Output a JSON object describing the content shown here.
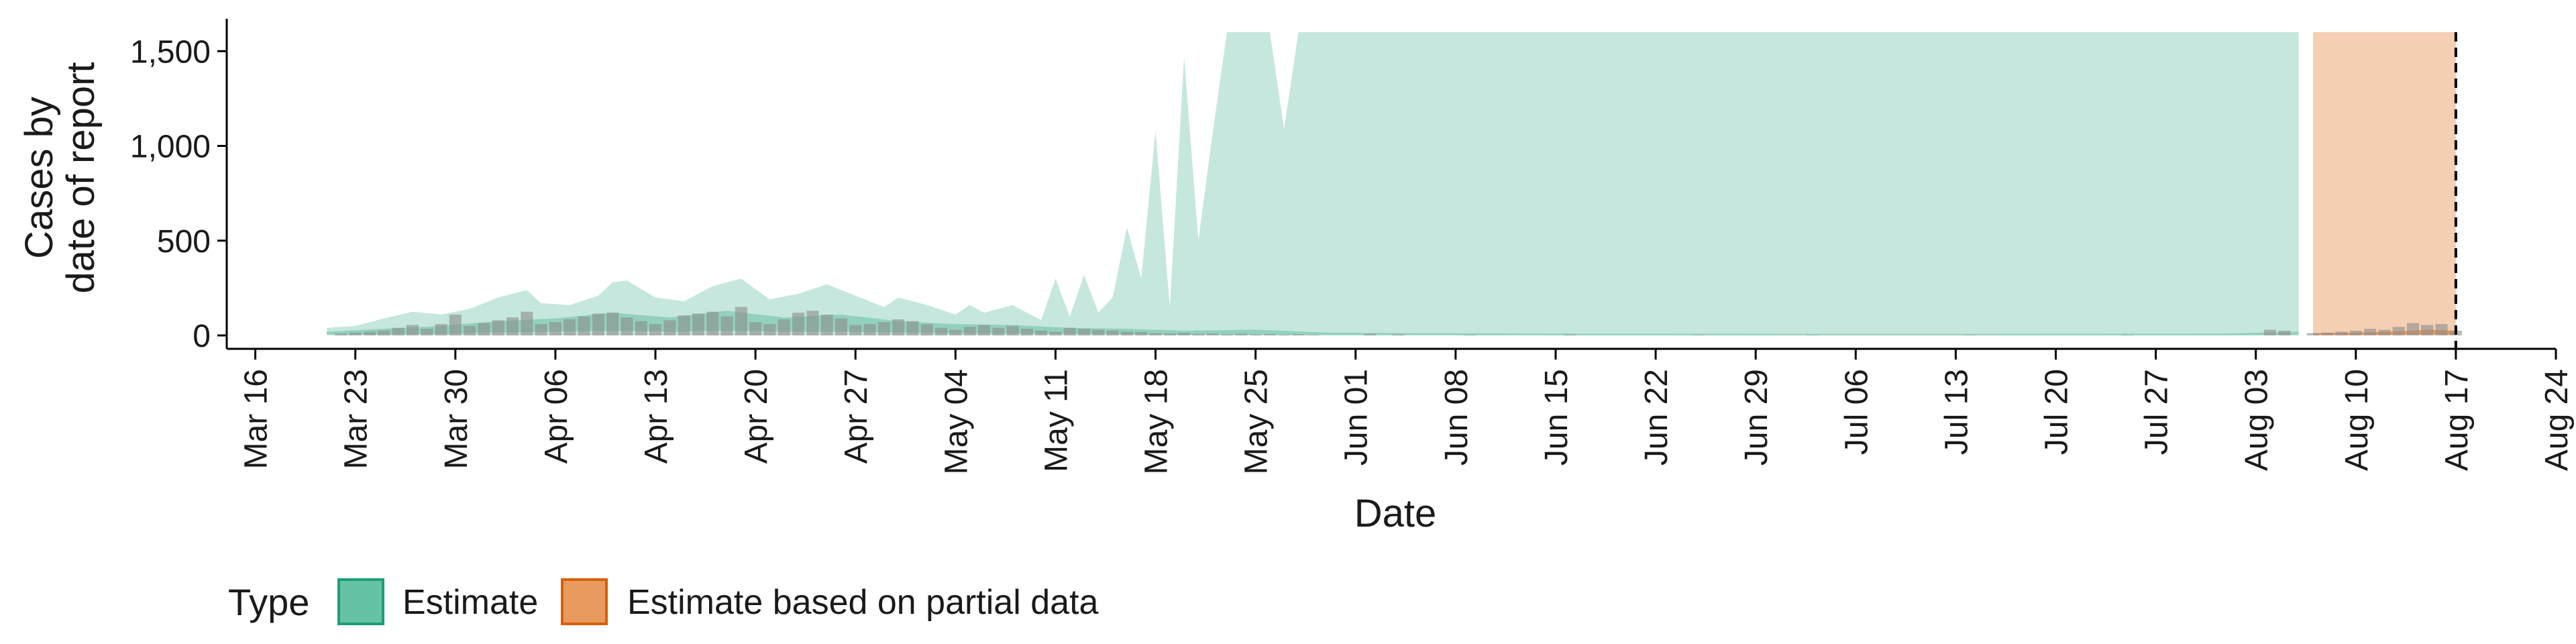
{
  "chart_data": {
    "type": "area",
    "title": "",
    "xlabel": "Date",
    "ylabel_lines": [
      "Cases by",
      "date of report"
    ],
    "ylim": [
      0,
      1600
    ],
    "xlim": [
      "2020-03-14",
      "2020-08-24"
    ],
    "y_ticks": [
      {
        "value": 0,
        "label": "0"
      },
      {
        "value": 500,
        "label": "500"
      },
      {
        "value": 1000,
        "label": "1,000"
      },
      {
        "value": 1500,
        "label": "1,500"
      }
    ],
    "x_ticks": [
      {
        "date": "2020-03-16",
        "label": "Mar 16"
      },
      {
        "date": "2020-03-23",
        "label": "Mar 23"
      },
      {
        "date": "2020-03-30",
        "label": "Mar 30"
      },
      {
        "date": "2020-04-06",
        "label": "Apr 06"
      },
      {
        "date": "2020-04-13",
        "label": "Apr 13"
      },
      {
        "date": "2020-04-20",
        "label": "Apr 20"
      },
      {
        "date": "2020-04-27",
        "label": "Apr 27"
      },
      {
        "date": "2020-05-04",
        "label": "May 04"
      },
      {
        "date": "2020-05-11",
        "label": "May 11"
      },
      {
        "date": "2020-05-18",
        "label": "May 18"
      },
      {
        "date": "2020-05-25",
        "label": "May 25"
      },
      {
        "date": "2020-06-01",
        "label": "Jun 01"
      },
      {
        "date": "2020-06-08",
        "label": "Jun 08"
      },
      {
        "date": "2020-06-15",
        "label": "Jun 15"
      },
      {
        "date": "2020-06-22",
        "label": "Jun 22"
      },
      {
        "date": "2020-06-29",
        "label": "Jun 29"
      },
      {
        "date": "2020-07-06",
        "label": "Jul 06"
      },
      {
        "date": "2020-07-13",
        "label": "Jul 13"
      },
      {
        "date": "2020-07-20",
        "label": "Jul 20"
      },
      {
        "date": "2020-07-27",
        "label": "Jul 27"
      },
      {
        "date": "2020-08-03",
        "label": "Aug 03"
      },
      {
        "date": "2020-08-10",
        "label": "Aug 10"
      },
      {
        "date": "2020-08-17",
        "label": "Aug 17"
      },
      {
        "date": "2020-08-24",
        "label": "Aug 24"
      }
    ],
    "vline_date": "2020-08-17",
    "legend": {
      "title": "Type",
      "position": "bottom",
      "entries": [
        {
          "label": "Estimate",
          "fill": "#66c2a5",
          "stroke": "#1b9e77"
        },
        {
          "label": "Estimate based on partial data",
          "fill": "#e89a5e",
          "stroke": "#d95f02"
        }
      ]
    },
    "colors": {
      "estimate": "#1b9e77",
      "partial": "#d95f02",
      "bar": "#8c8c8c",
      "vline": "#000000"
    },
    "series": [
      {
        "type": "Estimate",
        "band": "outer",
        "opacity": 0.25,
        "points": [
          [
            "2020-03-21",
            40,
            0
          ],
          [
            "2020-03-23",
            50,
            0
          ],
          [
            "2020-03-25",
            90,
            0
          ],
          [
            "2020-03-27",
            125,
            0
          ],
          [
            "2020-03-29",
            110,
            0
          ],
          [
            "2020-03-31",
            140,
            0
          ],
          [
            "2020-04-02",
            200,
            0
          ],
          [
            "2020-04-04",
            240,
            0
          ],
          [
            "2020-04-05",
            170,
            0
          ],
          [
            "2020-04-07",
            160,
            0
          ],
          [
            "2020-04-09",
            210,
            0
          ],
          [
            "2020-04-10",
            280,
            0
          ],
          [
            "2020-04-11",
            290,
            0
          ],
          [
            "2020-04-13",
            200,
            0
          ],
          [
            "2020-04-15",
            180,
            0
          ],
          [
            "2020-04-17",
            260,
            0
          ],
          [
            "2020-04-19",
            300,
            0
          ],
          [
            "2020-04-21",
            190,
            0
          ],
          [
            "2020-04-23",
            220,
            0
          ],
          [
            "2020-04-25",
            270,
            0
          ],
          [
            "2020-04-27",
            210,
            0
          ],
          [
            "2020-04-29",
            150,
            0
          ],
          [
            "2020-04-30",
            200,
            0
          ],
          [
            "2020-05-02",
            160,
            0
          ],
          [
            "2020-05-04",
            110,
            0
          ],
          [
            "2020-05-05",
            160,
            0
          ],
          [
            "2020-05-06",
            120,
            0
          ],
          [
            "2020-05-08",
            160,
            0
          ],
          [
            "2020-05-09",
            120,
            0
          ],
          [
            "2020-05-10",
            80,
            0
          ],
          [
            "2020-05-11",
            300,
            0
          ],
          [
            "2020-05-12",
            100,
            0
          ],
          [
            "2020-05-13",
            320,
            0
          ],
          [
            "2020-05-14",
            120,
            0
          ],
          [
            "2020-05-15",
            200,
            0
          ],
          [
            "2020-05-16",
            570,
            0
          ],
          [
            "2020-05-17",
            300,
            0
          ],
          [
            "2020-05-18",
            1080,
            0
          ],
          [
            "2020-05-19",
            150,
            0
          ],
          [
            "2020-05-20",
            1470,
            0
          ],
          [
            "2020-05-21",
            500,
            0
          ],
          [
            "2020-05-22",
            1070,
            0
          ],
          [
            "2020-05-23",
            1600,
            0
          ],
          [
            "2020-05-26",
            1600,
            0
          ],
          [
            "2020-05-27",
            1090,
            0
          ],
          [
            "2020-05-28",
            1600,
            0
          ],
          [
            "2020-08-06",
            1600,
            0
          ]
        ]
      },
      {
        "type": "Estimate",
        "band": "inner",
        "opacity": 0.3,
        "points": [
          [
            "2020-03-21",
            20,
            5
          ],
          [
            "2020-03-25",
            35,
            5
          ],
          [
            "2020-03-29",
            50,
            8
          ],
          [
            "2020-04-02",
            75,
            15
          ],
          [
            "2020-04-06",
            90,
            20
          ],
          [
            "2020-04-10",
            120,
            25
          ],
          [
            "2020-04-14",
            95,
            20
          ],
          [
            "2020-04-18",
            130,
            25
          ],
          [
            "2020-04-22",
            95,
            20
          ],
          [
            "2020-04-26",
            110,
            20
          ],
          [
            "2020-04-30",
            75,
            15
          ],
          [
            "2020-05-04",
            60,
            10
          ],
          [
            "2020-05-08",
            55,
            10
          ],
          [
            "2020-05-12",
            40,
            8
          ],
          [
            "2020-05-16",
            35,
            5
          ],
          [
            "2020-05-20",
            25,
            4
          ],
          [
            "2020-05-25",
            30,
            4
          ],
          [
            "2020-05-30",
            15,
            2
          ],
          [
            "2020-06-05",
            12,
            2
          ],
          [
            "2020-06-15",
            10,
            1
          ],
          [
            "2020-07-01",
            8,
            1
          ],
          [
            "2020-07-15",
            8,
            1
          ],
          [
            "2020-08-01",
            10,
            1
          ],
          [
            "2020-08-06",
            20,
            3
          ]
        ]
      },
      {
        "type": "Estimate based on partial data",
        "band": "outer",
        "opacity": 0.3,
        "points": [
          [
            "2020-08-07",
            1600,
            0
          ],
          [
            "2020-08-17",
            1600,
            0
          ]
        ]
      },
      {
        "type": "Estimate based on partial data",
        "band": "inner",
        "opacity": 0.5,
        "points": [
          [
            "2020-08-07",
            12,
            2
          ],
          [
            "2020-08-10",
            15,
            2
          ],
          [
            "2020-08-13",
            22,
            4
          ],
          [
            "2020-08-15",
            30,
            5
          ],
          [
            "2020-08-17",
            25,
            4
          ]
        ]
      }
    ],
    "reported_cases": [
      [
        "2020-03-22",
        10
      ],
      [
        "2020-03-23",
        15
      ],
      [
        "2020-03-24",
        20
      ],
      [
        "2020-03-25",
        25
      ],
      [
        "2020-03-26",
        40
      ],
      [
        "2020-03-27",
        55
      ],
      [
        "2020-03-28",
        35
      ],
      [
        "2020-03-29",
        60
      ],
      [
        "2020-03-30",
        110
      ],
      [
        "2020-03-31",
        50
      ],
      [
        "2020-04-01",
        65
      ],
      [
        "2020-04-02",
        80
      ],
      [
        "2020-04-03",
        95
      ],
      [
        "2020-04-04",
        125
      ],
      [
        "2020-04-05",
        60
      ],
      [
        "2020-04-06",
        70
      ],
      [
        "2020-04-07",
        85
      ],
      [
        "2020-04-08",
        100
      ],
      [
        "2020-04-09",
        115
      ],
      [
        "2020-04-10",
        120
      ],
      [
        "2020-04-11",
        95
      ],
      [
        "2020-04-12",
        75
      ],
      [
        "2020-04-13",
        60
      ],
      [
        "2020-04-14",
        80
      ],
      [
        "2020-04-15",
        105
      ],
      [
        "2020-04-16",
        115
      ],
      [
        "2020-04-17",
        125
      ],
      [
        "2020-04-18",
        100
      ],
      [
        "2020-04-19",
        150
      ],
      [
        "2020-04-20",
        70
      ],
      [
        "2020-04-21",
        60
      ],
      [
        "2020-04-22",
        85
      ],
      [
        "2020-04-23",
        120
      ],
      [
        "2020-04-24",
        130
      ],
      [
        "2020-04-25",
        110
      ],
      [
        "2020-04-26",
        90
      ],
      [
        "2020-04-27",
        55
      ],
      [
        "2020-04-28",
        60
      ],
      [
        "2020-04-29",
        70
      ],
      [
        "2020-04-30",
        85
      ],
      [
        "2020-05-01",
        75
      ],
      [
        "2020-05-02",
        60
      ],
      [
        "2020-05-03",
        40
      ],
      [
        "2020-05-04",
        30
      ],
      [
        "2020-05-05",
        45
      ],
      [
        "2020-05-06",
        55
      ],
      [
        "2020-05-07",
        40
      ],
      [
        "2020-05-08",
        50
      ],
      [
        "2020-05-09",
        35
      ],
      [
        "2020-05-10",
        25
      ],
      [
        "2020-05-11",
        20
      ],
      [
        "2020-05-12",
        40
      ],
      [
        "2020-05-13",
        35
      ],
      [
        "2020-05-14",
        30
      ],
      [
        "2020-05-15",
        25
      ],
      [
        "2020-05-16",
        20
      ],
      [
        "2020-05-17",
        18
      ],
      [
        "2020-05-18",
        12
      ],
      [
        "2020-05-19",
        10
      ],
      [
        "2020-05-20",
        14
      ],
      [
        "2020-05-21",
        8
      ],
      [
        "2020-05-22",
        10
      ],
      [
        "2020-05-23",
        6
      ],
      [
        "2020-05-24",
        8
      ],
      [
        "2020-05-25",
        5
      ],
      [
        "2020-05-26",
        7
      ],
      [
        "2020-05-27",
        4
      ],
      [
        "2020-05-28",
        6
      ],
      [
        "2020-05-29",
        3
      ],
      [
        "2020-06-02",
        8
      ],
      [
        "2020-06-04",
        5
      ],
      [
        "2020-06-09",
        3
      ],
      [
        "2020-06-16",
        4
      ],
      [
        "2020-06-25",
        2
      ],
      [
        "2020-07-03",
        3
      ],
      [
        "2020-07-14",
        2
      ],
      [
        "2020-07-25",
        3
      ],
      [
        "2020-08-04",
        30
      ],
      [
        "2020-08-05",
        25
      ],
      [
        "2020-08-07",
        12
      ],
      [
        "2020-08-08",
        15
      ],
      [
        "2020-08-09",
        20
      ],
      [
        "2020-08-10",
        25
      ],
      [
        "2020-08-11",
        35
      ],
      [
        "2020-08-12",
        30
      ],
      [
        "2020-08-13",
        45
      ],
      [
        "2020-08-14",
        65
      ],
      [
        "2020-08-15",
        55
      ],
      [
        "2020-08-16",
        60
      ],
      [
        "2020-08-17",
        25
      ]
    ]
  }
}
